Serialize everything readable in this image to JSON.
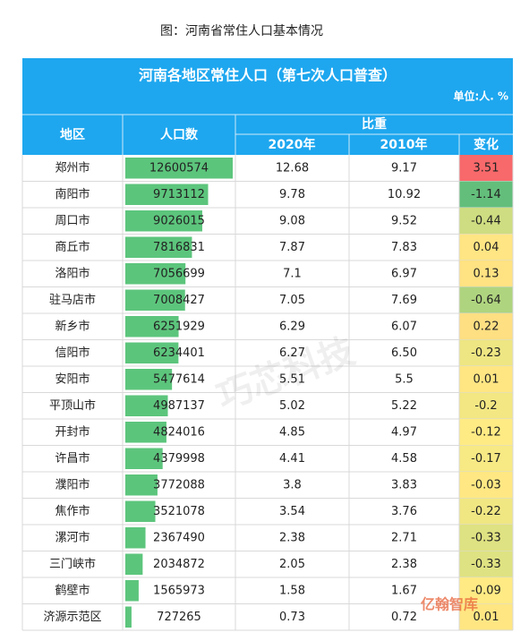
{
  "caption": "图：河南省常住人口基本情况",
  "table": {
    "title": "河南各地区常住人口（第七次人口普查）",
    "unit": "单位:人. %",
    "headers": {
      "region": "地区",
      "population": "人口数",
      "share": "比重",
      "y2020": "2020年",
      "y2010": "2010年",
      "change": "变化"
    },
    "rows": [
      [
        "郑州市",
        "12600574",
        "12.68",
        "9.17",
        "3.51"
      ],
      [
        "南阳市",
        "9713112",
        "9.78",
        "10.92",
        "-1.14"
      ],
      [
        "周口市",
        "9026015",
        "9.08",
        "9.52",
        "-0.44"
      ],
      [
        "商丘市",
        "7816831",
        "7.87",
        "7.83",
        "0.04"
      ],
      [
        "洛阳市",
        "7056699",
        "7.1",
        "6.97",
        "0.13"
      ],
      [
        "驻马店市",
        "7008427",
        "7.05",
        "7.69",
        "-0.64"
      ],
      [
        "新乡市",
        "6251929",
        "6.29",
        "6.07",
        "0.22"
      ],
      [
        "信阳市",
        "6234401",
        "6.27",
        "6.50",
        "-0.23"
      ],
      [
        "安阳市",
        "5477614",
        "5.51",
        "5.5",
        "0.01"
      ],
      [
        "平顶山市",
        "4987137",
        "5.02",
        "5.22",
        "-0.2"
      ],
      [
        "开封市",
        "4824016",
        "4.85",
        "4.97",
        "-0.12"
      ],
      [
        "许昌市",
        "4379998",
        "4.41",
        "4.58",
        "-0.17"
      ],
      [
        "濮阳市",
        "3772088",
        "3.8",
        "3.83",
        "-0.03"
      ],
      [
        "焦作市",
        "3521078",
        "3.54",
        "3.76",
        "-0.22"
      ],
      [
        "漯河市",
        "2367490",
        "2.38",
        "2.71",
        "-0.33"
      ],
      [
        "三门峡市",
        "2034872",
        "2.05",
        "2.38",
        "-0.33"
      ],
      [
        "鹤壁市",
        "1565973",
        "1.58",
        "1.67",
        "-0.09"
      ],
      [
        "济源示范区",
        "727265",
        "0.73",
        "0.72",
        "0.01"
      ]
    ]
  },
  "watermark": "巧芯科技",
  "logo": "亿翰智库"
}
